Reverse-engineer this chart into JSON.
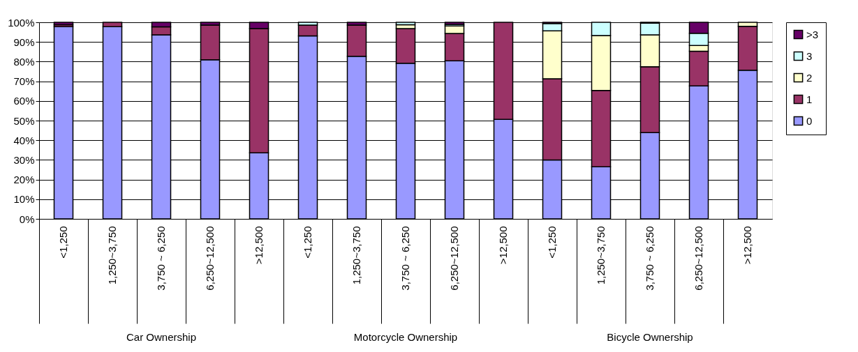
{
  "chart_data": {
    "type": "bar",
    "stacked": true,
    "categories": [
      "<1,250",
      "1,250~3,750",
      "3,750 ~ 6,250",
      "6,250~12,500",
      ">12,500",
      "<1,250",
      "1,250~3,750",
      "3,750 ~ 6,250",
      "6,250~12,500",
      ">12,500",
      "<1,250",
      "1,250~3,750",
      "3,750 ~ 6,250",
      "6,250~12,500",
      ">12,500"
    ],
    "series": [
      {
        "name": "0",
        "color": "#9999ff",
        "values": [
          97.8,
          97.8,
          93.6,
          80.9,
          33.6,
          93.1,
          82.7,
          79.2,
          80.4,
          50.6,
          30.0,
          26.5,
          43.9,
          67.6,
          75.6
        ]
      },
      {
        "name": "1",
        "color": "#993366",
        "values": [
          1.0,
          2.2,
          4.1,
          17.7,
          63.2,
          5.5,
          15.9,
          17.6,
          13.9,
          49.4,
          41.3,
          38.8,
          33.5,
          17.7,
          22.4
        ]
      },
      {
        "name": "2",
        "color": "#ffffcc",
        "values": [
          null,
          null,
          null,
          null,
          null,
          null,
          null,
          2.0,
          3.8,
          null,
          24.4,
          28.0,
          16.2,
          2.9,
          2.0
        ]
      },
      {
        "name": "3",
        "color": "#ccffff",
        "values": [
          null,
          null,
          null,
          null,
          null,
          1.4,
          null,
          1.2,
          0.8,
          null,
          3.7,
          6.7,
          6.0,
          6.2,
          null
        ]
      },
      {
        "name": ">3",
        "color": "#660066",
        "values": [
          1.2,
          null,
          2.3,
          1.4,
          3.2,
          null,
          1.4,
          null,
          1.1,
          null,
          0.6,
          null,
          0.4,
          5.6,
          null
        ]
      }
    ],
    "ylim": [
      0,
      100
    ],
    "yticks": [
      {
        "value": 0,
        "label": "0%"
      },
      {
        "value": 10,
        "label": "10%"
      },
      {
        "value": 20,
        "label": "20%"
      },
      {
        "value": 30,
        "label": "30%"
      },
      {
        "value": 40,
        "label": "40%"
      },
      {
        "value": 50,
        "label": "50%"
      },
      {
        "value": 60,
        "label": "60%"
      },
      {
        "value": 70,
        "label": "70%"
      },
      {
        "value": 80,
        "label": "80%"
      },
      {
        "value": 90,
        "label": "90%"
      },
      {
        "value": 100,
        "label": "100%"
      }
    ],
    "grid": "y",
    "legend": "right",
    "annotations": [
      "Car Ownership",
      "Motorcycle Ownership",
      "Bicycle Ownership"
    ]
  }
}
